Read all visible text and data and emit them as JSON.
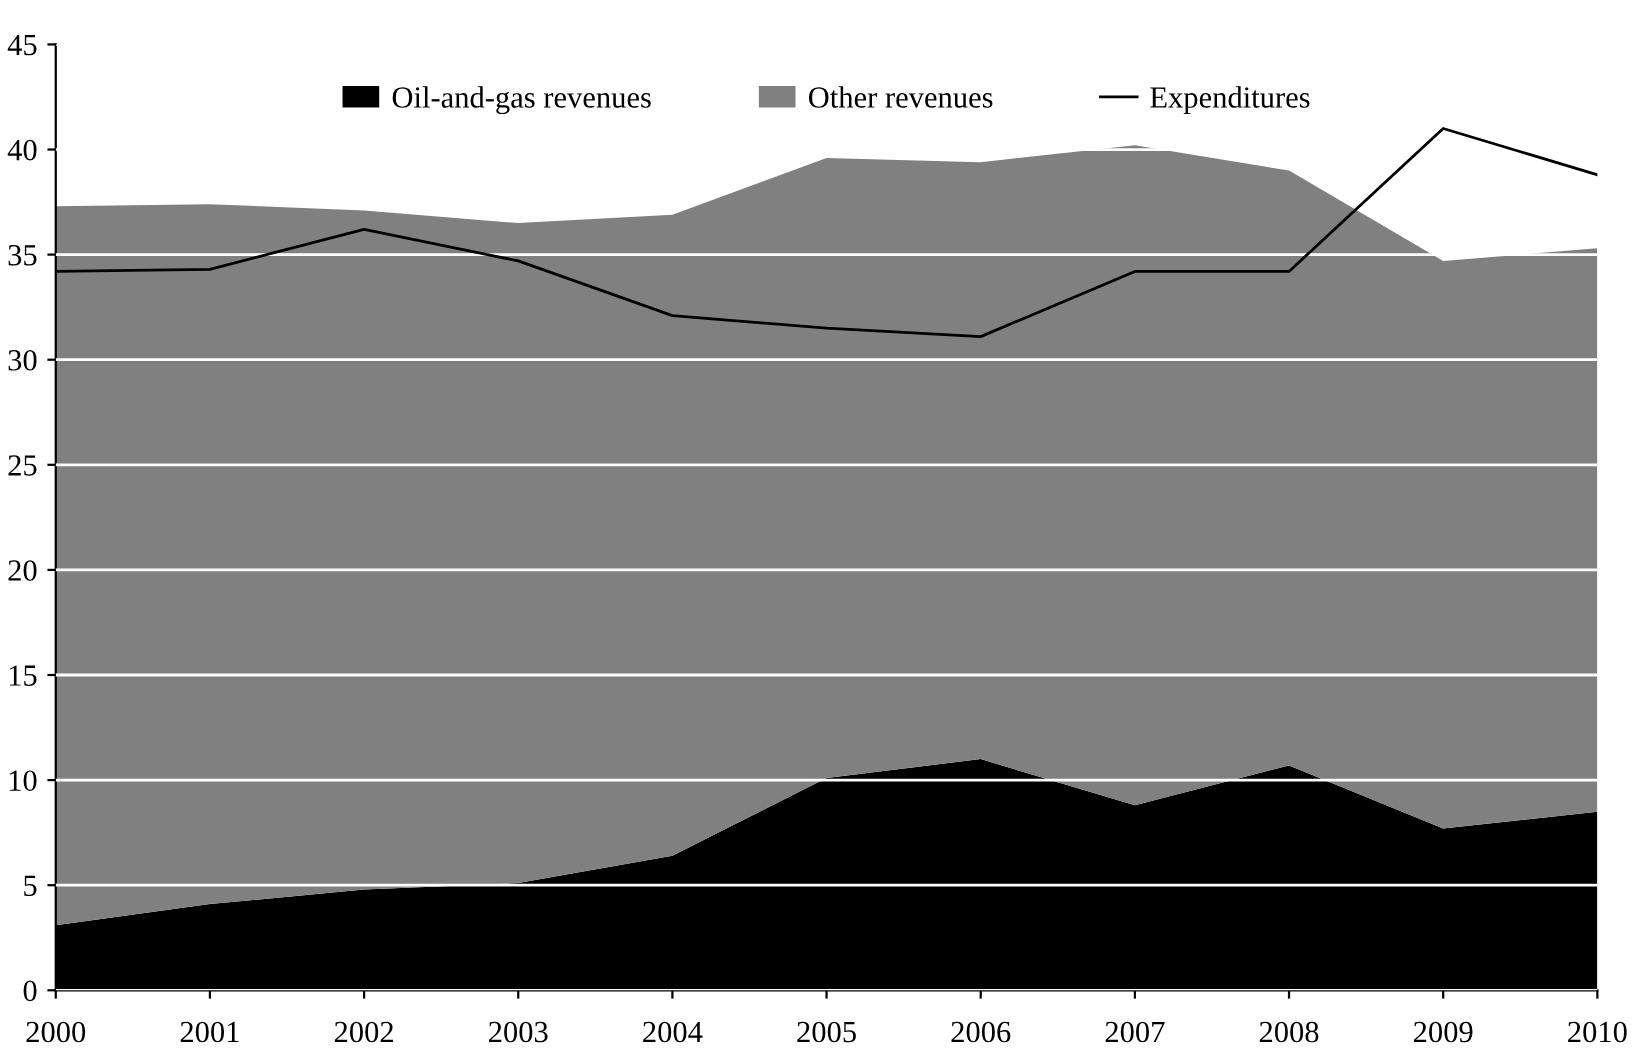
{
  "chart_data": {
    "type": "area",
    "stacked": true,
    "x": [
      2000,
      2001,
      2002,
      2003,
      2004,
      2005,
      2006,
      2007,
      2008,
      2009,
      2010
    ],
    "series": [
      {
        "name": "Oil-and-gas revenues",
        "color": "#000000",
        "values": [
          3.1,
          4.1,
          4.8,
          5.1,
          6.4,
          10.1,
          11.0,
          8.8,
          10.7,
          7.7,
          8.5
        ]
      },
      {
        "name": "Other revenues",
        "color": "#808080",
        "values": [
          34.2,
          33.3,
          32.3,
          31.4,
          30.5,
          29.5,
          28.4,
          31.4,
          28.3,
          27.0,
          26.8
        ]
      },
      {
        "name": "Expenditures",
        "type": "line",
        "color": "#000000",
        "values": [
          34.2,
          34.3,
          36.2,
          34.7,
          32.1,
          31.5,
          31.1,
          34.2,
          34.2,
          41.0,
          38.8
        ]
      }
    ],
    "xlim": [
      2000,
      2010
    ],
    "xticks": [
      2000,
      2001,
      2002,
      2003,
      2004,
      2005,
      2006,
      2007,
      2008,
      2009,
      2010
    ],
    "ylim": [
      0,
      45
    ],
    "yticks": [
      0,
      5,
      10,
      15,
      20,
      25,
      30,
      35,
      40,
      45
    ],
    "grid": "y",
    "legend": "top",
    "line_style": "solid",
    "marker": "none"
  }
}
